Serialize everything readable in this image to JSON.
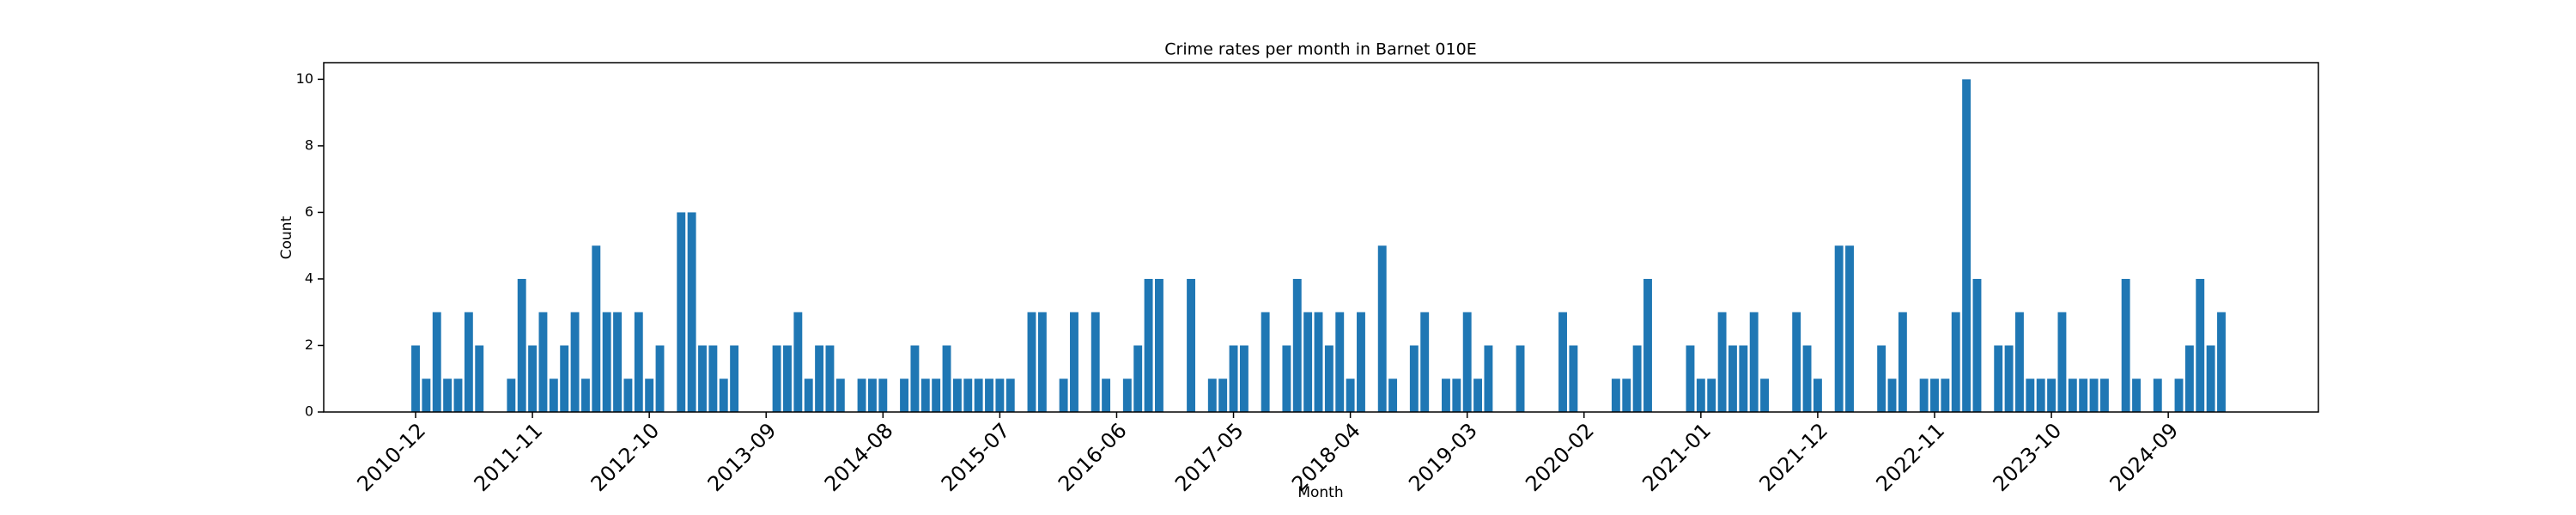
{
  "chart_data": {
    "type": "bar",
    "title": "Crime rates per month in Barnet 010E",
    "x_label": "Month",
    "y_label": "Count",
    "color": "#1f77b4",
    "grid": false,
    "categories": [
      "2010-12",
      null,
      null,
      null,
      null,
      null,
      null,
      null,
      null,
      null,
      null,
      "2011-11",
      null,
      null,
      null,
      null,
      null,
      null,
      null,
      null,
      null,
      null,
      "2012-10",
      null,
      null,
      null,
      null,
      null,
      null,
      null,
      null,
      null,
      null,
      "2013-09",
      null,
      null,
      null,
      null,
      null,
      null,
      null,
      null,
      null,
      null,
      "2014-08",
      null,
      null,
      null,
      null,
      null,
      null,
      null,
      null,
      null,
      null,
      "2015-07",
      null,
      null,
      null,
      null,
      null,
      null,
      null,
      null,
      null,
      null,
      "2016-06",
      null,
      null,
      null,
      null,
      null,
      null,
      null,
      null,
      null,
      null,
      "2017-05",
      null,
      null,
      null,
      null,
      null,
      null,
      null,
      null,
      null,
      null,
      "2018-04",
      null,
      null,
      null,
      null,
      null,
      null,
      null,
      null,
      null,
      null,
      "2019-03",
      null,
      null,
      null,
      null,
      null,
      null,
      null,
      null,
      null,
      null,
      "2020-02",
      null,
      null,
      null,
      null,
      null,
      null,
      null,
      null,
      null,
      null,
      "2021-01",
      null,
      null,
      null,
      null,
      null,
      null,
      null,
      null,
      null,
      null,
      "2021-12",
      null,
      null,
      null,
      null,
      null,
      null,
      null,
      null,
      null,
      null,
      "2022-11",
      null,
      null,
      null,
      null,
      null,
      null,
      null,
      null,
      null,
      null,
      "2023-10",
      null,
      null,
      null,
      null,
      null,
      null,
      null,
      null,
      null,
      null,
      "2024-09",
      null,
      null,
      null,
      null,
      null
    ],
    "values": [
      2,
      1,
      3,
      1,
      1,
      3,
      2,
      0,
      0,
      1,
      4,
      2,
      3,
      1,
      2,
      3,
      1,
      5,
      3,
      3,
      1,
      3,
      1,
      2,
      0,
      6,
      6,
      2,
      2,
      1,
      2,
      0,
      0,
      0,
      2,
      2,
      3,
      1,
      2,
      2,
      1,
      0,
      1,
      1,
      1,
      0,
      1,
      2,
      1,
      1,
      2,
      1,
      1,
      1,
      1,
      1,
      1,
      0,
      3,
      3,
      0,
      1,
      3,
      0,
      3,
      1,
      0,
      1,
      2,
      4,
      4,
      0,
      0,
      4,
      0,
      1,
      1,
      2,
      2,
      0,
      3,
      0,
      2,
      4,
      3,
      3,
      2,
      3,
      1,
      3,
      0,
      5,
      1,
      0,
      2,
      3,
      0,
      1,
      1,
      3,
      1,
      2,
      0,
      0,
      2,
      0,
      0,
      0,
      3,
      2,
      0,
      0,
      0,
      1,
      1,
      2,
      4,
      0,
      0,
      0,
      2,
      1,
      1,
      3,
      2,
      2,
      3,
      1,
      0,
      0,
      3,
      2,
      1,
      0,
      5,
      5,
      0,
      0,
      2,
      1,
      3,
      0,
      1,
      1,
      1,
      3,
      10,
      4,
      0,
      2,
      2,
      3,
      1,
      1,
      1,
      3,
      1,
      1,
      1,
      1,
      0,
      4,
      1,
      0,
      1,
      0,
      1,
      2,
      4,
      2,
      3
    ],
    "ylim": [
      0,
      10.5
    ],
    "yticks": [
      0,
      2,
      4,
      6,
      8,
      10
    ]
  }
}
